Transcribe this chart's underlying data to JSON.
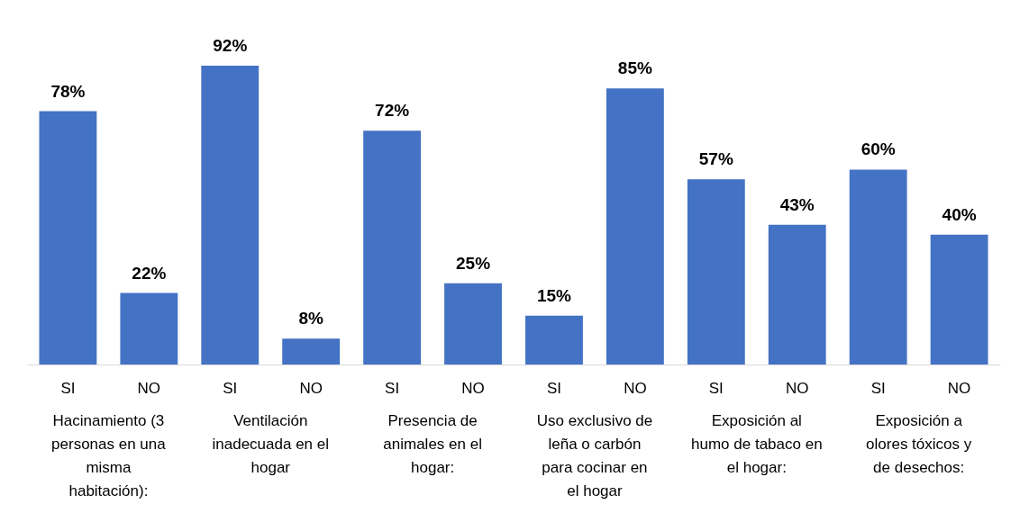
{
  "chart_data": {
    "type": "bar",
    "categories": [
      "SI",
      "NO",
      "SI",
      "NO",
      "SI",
      "NO",
      "SI",
      "NO",
      "SI",
      "NO",
      "SI",
      "NO"
    ],
    "values": [
      78,
      22,
      92,
      8,
      72,
      25,
      15,
      85,
      57,
      43,
      60,
      40
    ],
    "value_labels": [
      "78%",
      "22%",
      "92%",
      "8%",
      "72%",
      "25%",
      "15%",
      "85%",
      "57%",
      "43%",
      "60%",
      "40%"
    ],
    "color": "#4472c4",
    "annotations": [
      "Hacinamiento (3 personas en una misma habitación):",
      "Ventilación inadecuada en el hogar",
      "Presencia de animales en el hogar:",
      "Uso exclusivo de leña o carbón para cocinar en el hogar",
      "Exposición al humo de tabaco en el hogar:",
      "Exposición a olores tóxicos y de desechos:"
    ]
  }
}
